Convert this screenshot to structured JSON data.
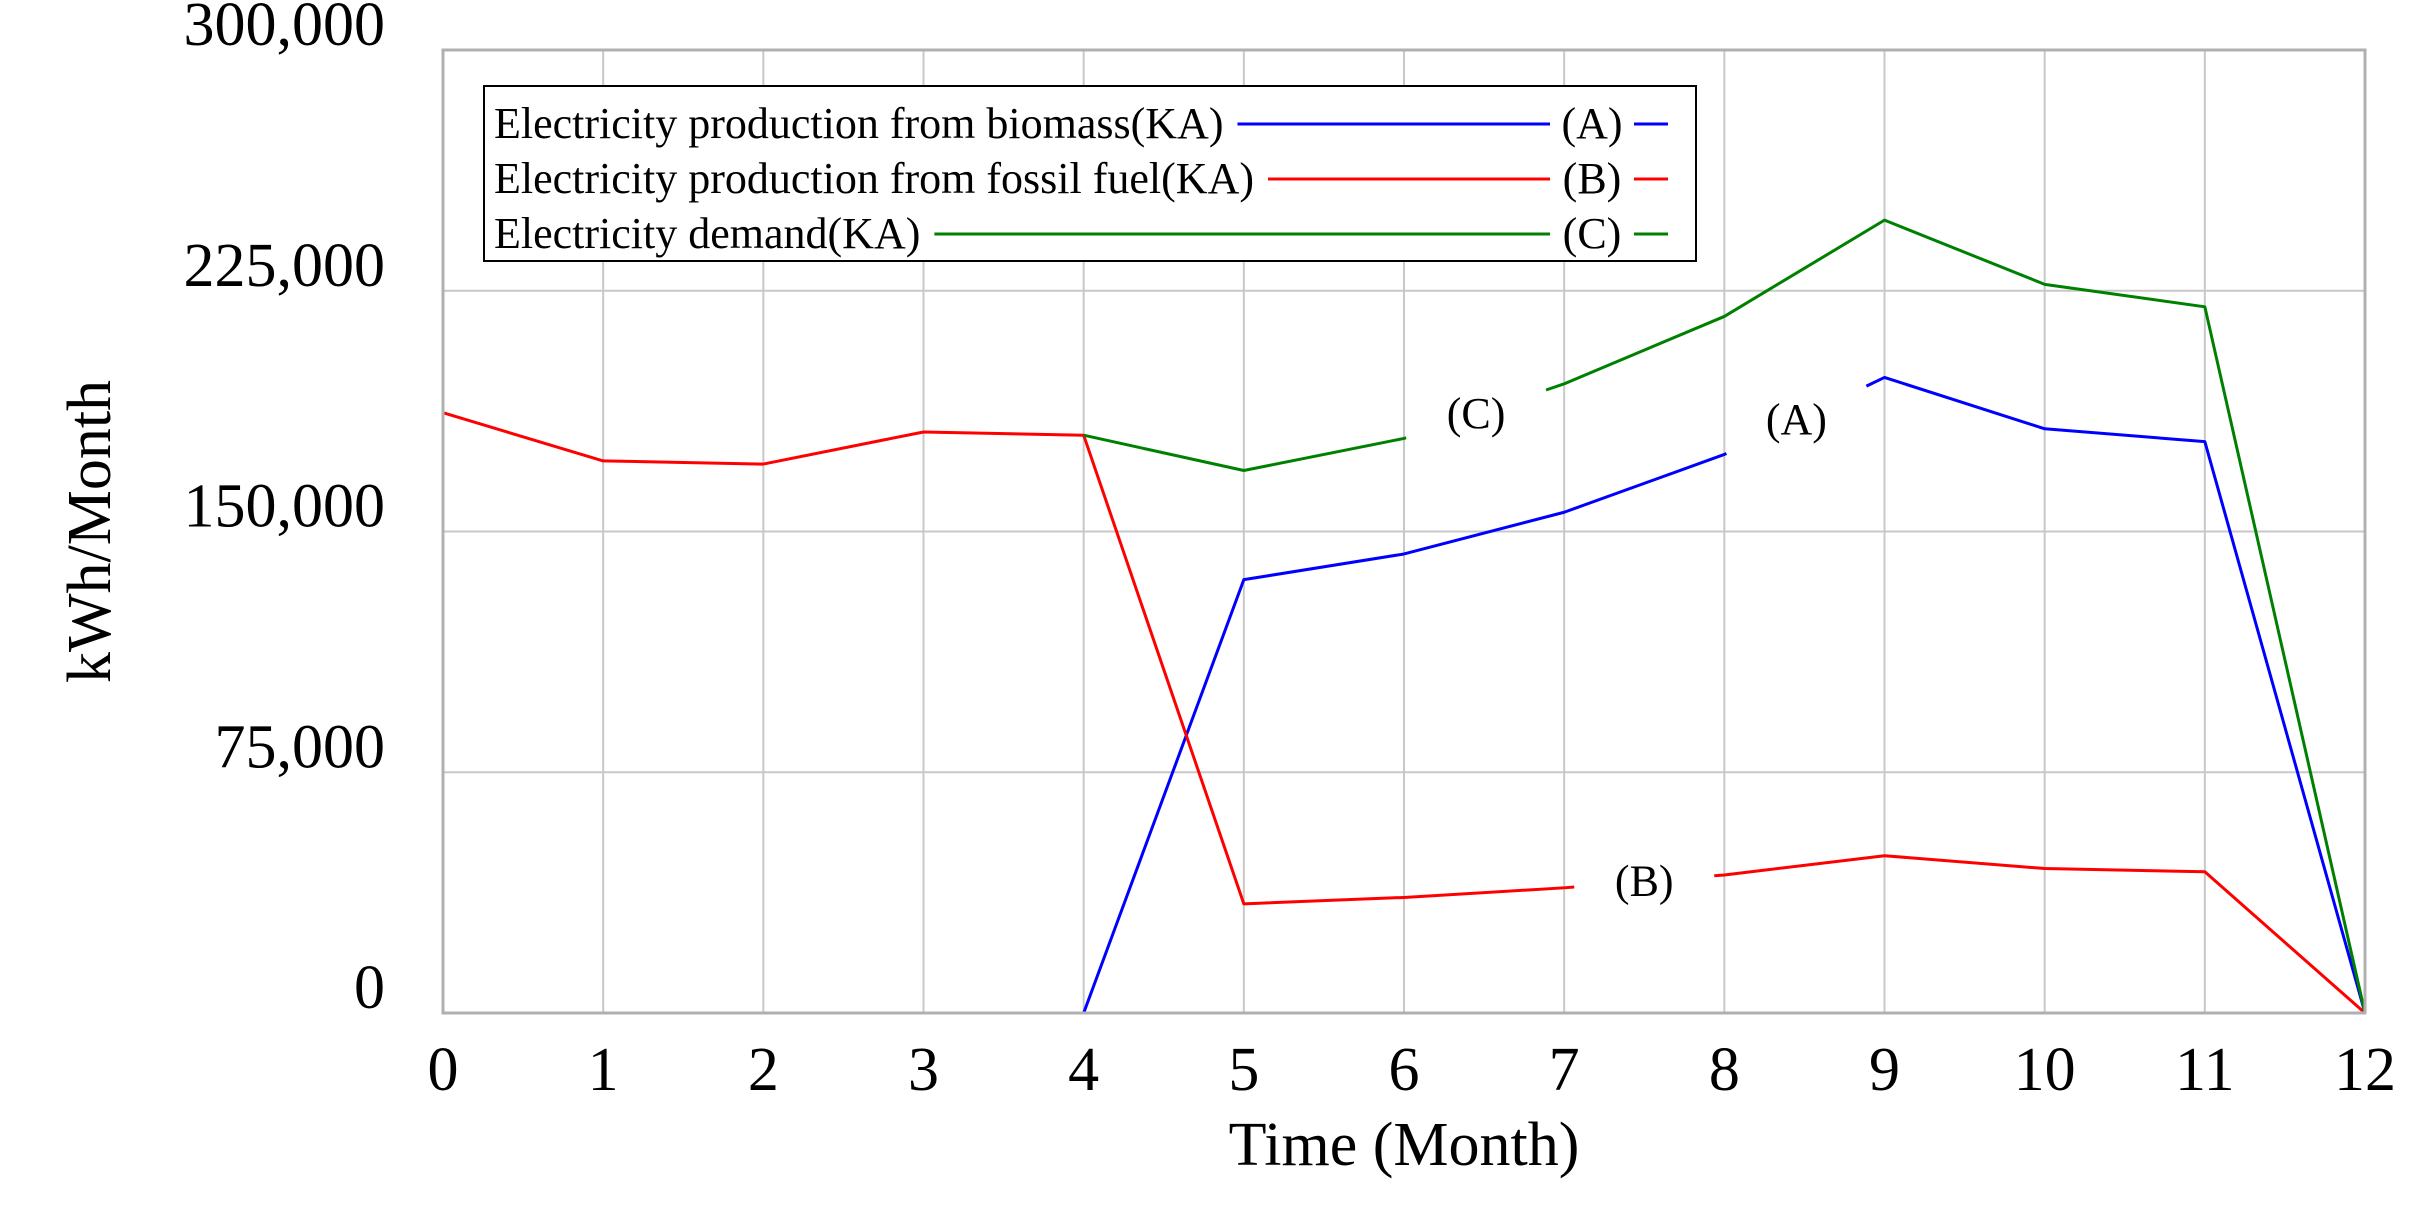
{
  "chart_data": {
    "type": "line",
    "title": "",
    "xlabel": "Time (Month)",
    "ylabel": "kWh/Month",
    "x": [
      0,
      1,
      2,
      3,
      4,
      5,
      6,
      7,
      8,
      9,
      10,
      11,
      12
    ],
    "xlim": [
      0,
      12
    ],
    "ylim": [
      0,
      300000
    ],
    "x_tick_labels": [
      "0",
      "1",
      "2",
      "3",
      "4",
      "5",
      "6",
      "7",
      "8",
      "9",
      "10",
      "11",
      "12"
    ],
    "y_ticks": [
      0,
      75000,
      150000,
      225000,
      300000
    ],
    "y_tick_labels": [
      "0",
      "75,000",
      "150,000",
      "225,000",
      "300,000"
    ],
    "grid": true,
    "legend_position": "top-left",
    "series": [
      {
        "name": "Electricity production from biomass(KA)",
        "tag": "(A)",
        "color": "#0000ff",
        "values": [
          0,
          0,
          0,
          0,
          0,
          135000,
          143000,
          156000,
          174000,
          198000,
          182000,
          178000,
          0
        ],
        "label_at_x": 8.45
      },
      {
        "name": "Electricity production from fossil fuel(KA)",
        "tag": "(B)",
        "color": "#ff0000",
        "values": [
          187000,
          172000,
          171000,
          181000,
          180000,
          34000,
          36000,
          39000,
          43000,
          49000,
          45000,
          44000,
          0
        ],
        "label_at_x": 7.5
      },
      {
        "name": "Electricity demand(KA)",
        "tag": "(C)",
        "color": "#008000",
        "values": [
          null,
          null,
          null,
          null,
          180000,
          169000,
          179000,
          196000,
          217000,
          247000,
          227000,
          220000,
          0
        ],
        "label_at_x": 6.45
      }
    ]
  }
}
